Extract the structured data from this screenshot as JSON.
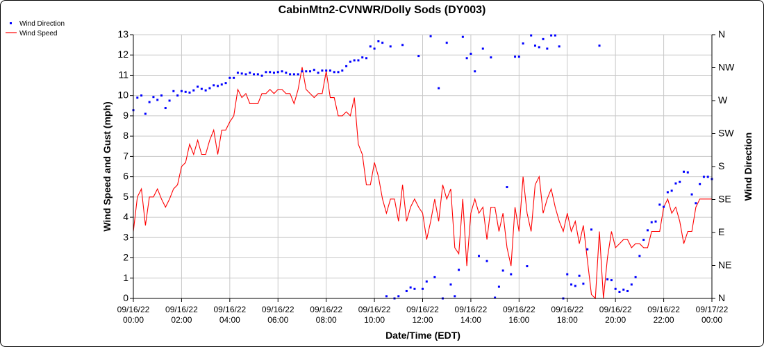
{
  "chart_data": {
    "type": "line",
    "title": "CabinMtn2-CVNWR/Dolly Sods (DY003)",
    "xlabel": "Date/Time (EDT)",
    "ylabel": "Wind Speed and Gust (mph)",
    "y2label": "Wind Direction",
    "ylim": [
      0,
      13
    ],
    "y2lim": [
      0,
      360
    ],
    "x_interval_minutes": 10,
    "x_start": "09/16/22 00:00",
    "x_end": "09/17/22 00:00",
    "grid": true,
    "legend_placement": "top-left",
    "y_ticks": [
      "0",
      "1",
      "2",
      "3",
      "4",
      "5",
      "6",
      "7",
      "8",
      "9",
      "10",
      "11",
      "12",
      "13"
    ],
    "y2_ticks": [
      "N",
      "NE",
      "E",
      "SE",
      "S",
      "SW",
      "W",
      "NW",
      "N"
    ],
    "x_ticks": [
      {
        "date": "09/16/22",
        "time": "00:00"
      },
      {
        "date": "09/16/22",
        "time": "02:00"
      },
      {
        "date": "09/16/22",
        "time": "04:00"
      },
      {
        "date": "09/16/22",
        "time": "06:00"
      },
      {
        "date": "09/16/22",
        "time": "08:00"
      },
      {
        "date": "09/16/22",
        "time": "10:00"
      },
      {
        "date": "09/16/22",
        "time": "12:00"
      },
      {
        "date": "09/16/22",
        "time": "14:00"
      },
      {
        "date": "09/16/22",
        "time": "16:00"
      },
      {
        "date": "09/16/22",
        "time": "18:00"
      },
      {
        "date": "09/16/22",
        "time": "20:00"
      },
      {
        "date": "09/16/22",
        "time": "22:00"
      },
      {
        "date": "09/17/22",
        "time": "00:00"
      }
    ],
    "series": [
      {
        "name": "Wind Direction",
        "type": "scatter",
        "axis": "right",
        "color": "#0000ff",
        "values": [
          257,
          274,
          277,
          252,
          268,
          275,
          271,
          277,
          260,
          270,
          283,
          277,
          283,
          282,
          281,
          284,
          289,
          286,
          284,
          287,
          291,
          290,
          292,
          294,
          301,
          301,
          308,
          307,
          306,
          308,
          306,
          306,
          304,
          309,
          309,
          308,
          309,
          310,
          308,
          306,
          306,
          306,
          310,
          310,
          310,
          312,
          308,
          311,
          311,
          311,
          309,
          309,
          311,
          317,
          323,
          325,
          325,
          329,
          328,
          344,
          341,
          351,
          349,
          3,
          344,
          0,
          3,
          346,
          10,
          15,
          13,
          331,
          13,
          23,
          358,
          29,
          287,
          0,
          349,
          19,
          3,
          39,
          357,
          328,
          334,
          310,
          58,
          341,
          51,
          329,
          1,
          16,
          38,
          152,
          33,
          330,
          330,
          348,
          44,
          359,
          345,
          343,
          354,
          341,
          359,
          359,
          344,
          0,
          33,
          19,
          17,
          31,
          20,
          67,
          94,
          null,
          345,
          null,
          26,
          25,
          13,
          9,
          12,
          10,
          19,
          29,
          58,
          80,
          93,
          104,
          105,
          128,
          125,
          145,
          147,
          157,
          159,
          173,
          172,
          142,
          130,
          156,
          166,
          166,
          163
        ]
      },
      {
        "name": "Wind Speed",
        "type": "line",
        "axis": "left",
        "color": "#ff0000",
        "values": [
          3.3,
          5.0,
          5.4,
          3.6,
          5.0,
          5.0,
          5.4,
          4.9,
          4.5,
          4.9,
          5.4,
          5.6,
          6.5,
          6.7,
          7.6,
          7.1,
          7.8,
          7.1,
          7.1,
          7.8,
          8.3,
          7.1,
          8.3,
          8.3,
          8.7,
          9.0,
          10.3,
          9.9,
          10.1,
          9.6,
          9.6,
          9.6,
          10.1,
          10.1,
          10.3,
          10.1,
          10.3,
          10.3,
          10.1,
          10.1,
          9.6,
          10.3,
          11.4,
          10.3,
          10.1,
          9.9,
          10.1,
          10.1,
          11.2,
          9.9,
          9.9,
          9.0,
          9.0,
          9.2,
          9.0,
          9.9,
          7.6,
          7.1,
          5.6,
          5.6,
          6.7,
          6.0,
          4.9,
          4.2,
          4.9,
          4.9,
          3.8,
          5.6,
          3.8,
          4.5,
          4.9,
          4.5,
          4.2,
          2.9,
          3.8,
          4.9,
          3.8,
          5.6,
          4.9,
          5.4,
          2.5,
          2.2,
          4.9,
          1.6,
          4.2,
          4.9,
          4.2,
          4.5,
          2.9,
          4.5,
          4.5,
          3.3,
          4.2,
          2.5,
          1.6,
          4.5,
          3.3,
          6.0,
          4.2,
          3.3,
          5.6,
          6.0,
          4.2,
          4.9,
          5.4,
          4.5,
          3.8,
          3.3,
          4.2,
          3.3,
          3.8,
          2.7,
          3.6,
          1.9,
          0.2,
          0.0,
          3.3,
          0.0,
          2.0,
          3.3,
          2.5,
          2.7,
          2.9,
          2.9,
          2.5,
          2.7,
          2.7,
          2.5,
          2.5,
          3.3,
          3.3,
          3.3,
          4.5,
          4.9,
          4.2,
          4.5,
          3.8,
          2.7,
          3.3,
          3.3,
          4.5,
          4.9,
          4.9,
          4.9,
          4.9
        ]
      }
    ]
  }
}
